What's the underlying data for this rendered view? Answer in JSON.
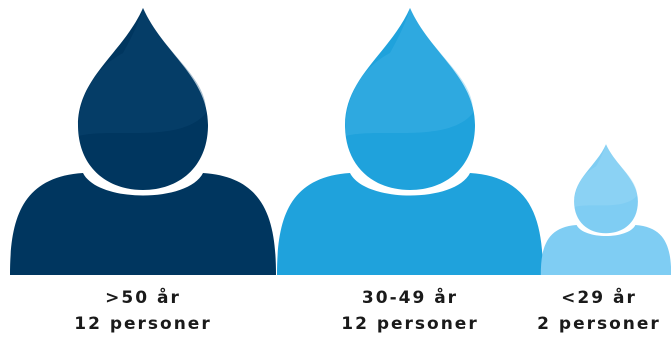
{
  "chart_data": {
    "type": "pictogram",
    "categories": [
      ">50 år",
      "30-49 år",
      "<29 år"
    ],
    "values": [
      12,
      12,
      2
    ],
    "value_labels": [
      "12 personer",
      "12 personer",
      "2 personer"
    ],
    "colors": [
      "#00365f",
      "#1fa2dc",
      "#7fcdf3"
    ],
    "head_shine_colors": [
      "#0f4a78",
      "#4bb8e8",
      "#a2dcf7"
    ]
  }
}
